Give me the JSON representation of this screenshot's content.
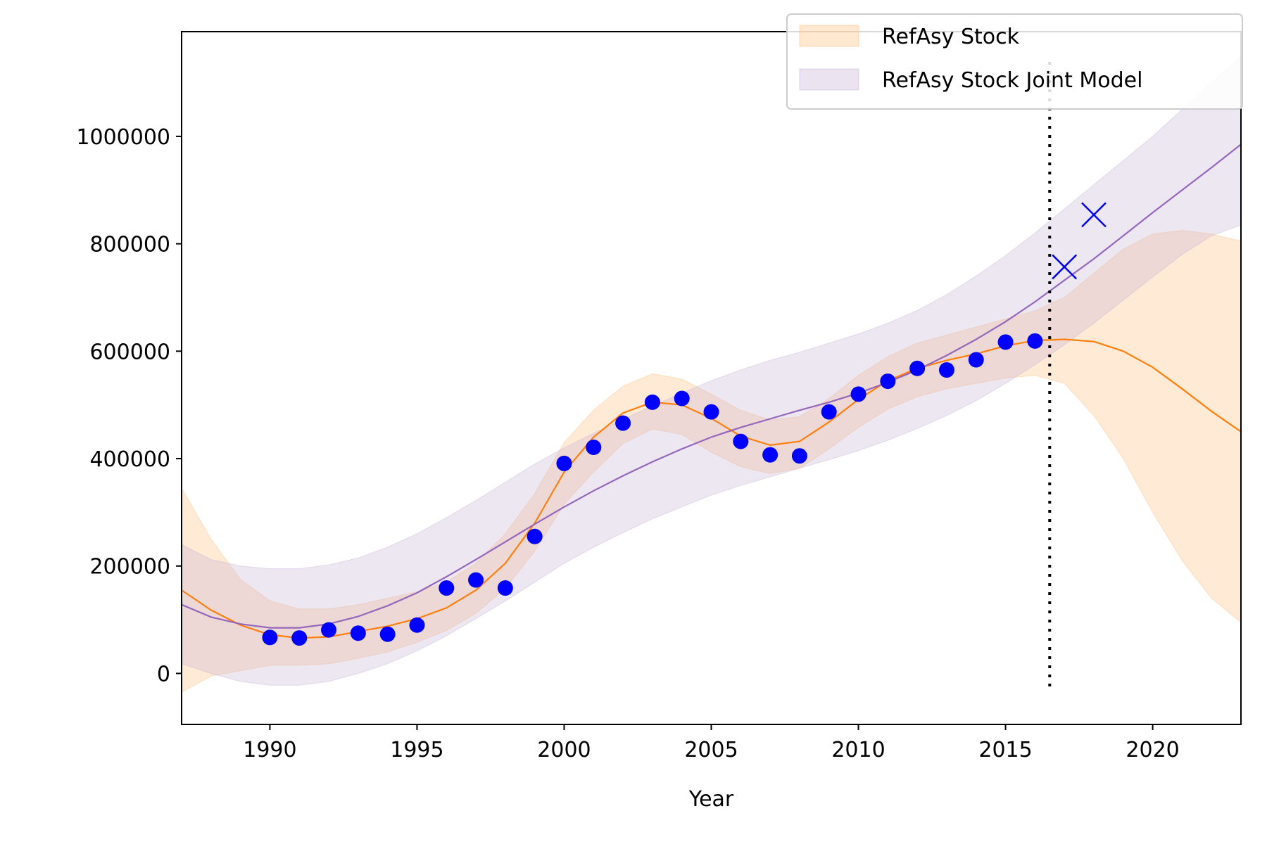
{
  "chart_data": {
    "type": "line",
    "title": "",
    "xlabel": "Year",
    "ylabel": "",
    "xlim": [
      1987,
      2023
    ],
    "ylim": [
      -95000,
      1195000
    ],
    "xticks": [
      1990,
      1995,
      2000,
      2005,
      2010,
      2015,
      2020
    ],
    "yticks": [
      0,
      200000,
      400000,
      600000,
      800000,
      1000000
    ],
    "grid": false,
    "legend_position": "top-right",
    "vline_x": 2016.5,
    "series": [
      {
        "name": "RefAsy Stock",
        "kind": "band_with_line",
        "color": "#ff7f0e",
        "band_color": "#ffbb78",
        "x": [
          1987,
          1988,
          1989,
          1990,
          1991,
          1992,
          1993,
          1994,
          1995,
          1996,
          1997,
          1998,
          1999,
          2000,
          2001,
          2002,
          2003,
          2004,
          2005,
          2006,
          2007,
          2008,
          2009,
          2010,
          2011,
          2012,
          2013,
          2014,
          2015,
          2016,
          2017,
          2018,
          2019,
          2020,
          2021,
          2022,
          2023
        ],
        "y": [
          155000,
          118000,
          90000,
          72000,
          66000,
          68000,
          78000,
          88000,
          102000,
          122000,
          155000,
          205000,
          280000,
          375000,
          440000,
          485000,
          505000,
          500000,
          475000,
          442000,
          425000,
          432000,
          468000,
          510000,
          545000,
          568000,
          583000,
          595000,
          610000,
          620000,
          622000,
          618000,
          600000,
          570000,
          530000,
          488000,
          450000
        ],
        "lower": [
          -35000,
          -5000,
          5000,
          15000,
          15000,
          18000,
          28000,
          40000,
          58000,
          80000,
          112000,
          158000,
          228000,
          315000,
          375000,
          428000,
          455000,
          445000,
          412000,
          385000,
          372000,
          382000,
          418000,
          458000,
          492000,
          515000,
          530000,
          540000,
          550000,
          555000,
          540000,
          480000,
          400000,
          300000,
          210000,
          140000,
          95000
        ],
        "upper": [
          345000,
          250000,
          175000,
          135000,
          120000,
          120000,
          128000,
          140000,
          152000,
          170000,
          205000,
          260000,
          335000,
          430000,
          490000,
          535000,
          558000,
          548000,
          520000,
          490000,
          472000,
          478000,
          512000,
          555000,
          590000,
          615000,
          630000,
          645000,
          660000,
          675000,
          700000,
          745000,
          790000,
          818000,
          825000,
          818000,
          805000
        ]
      },
      {
        "name": "RefAsy Stock Joint Model",
        "kind": "band_with_line",
        "color": "#9467bd",
        "band_color": "#c5b0d5",
        "x": [
          1987,
          1988,
          1989,
          1990,
          1991,
          1992,
          1993,
          1994,
          1995,
          1996,
          1997,
          1998,
          1999,
          2000,
          2001,
          2002,
          2003,
          2004,
          2005,
          2006,
          2007,
          2008,
          2009,
          2010,
          2011,
          2012,
          2013,
          2014,
          2015,
          2016,
          2017,
          2018,
          2019,
          2020,
          2021,
          2022,
          2023
        ],
        "y": [
          128000,
          105000,
          92000,
          85000,
          85000,
          92000,
          106000,
          126000,
          150000,
          180000,
          212000,
          245000,
          278000,
          310000,
          340000,
          368000,
          394000,
          418000,
          440000,
          458000,
          474000,
          490000,
          505000,
          522000,
          542000,
          565000,
          592000,
          622000,
          655000,
          692000,
          732000,
          772000,
          815000,
          858000,
          900000,
          942000,
          985000
        ],
        "lower": [
          18000,
          0,
          -15000,
          -22000,
          -22000,
          -15000,
          0,
          18000,
          42000,
          70000,
          102000,
          135000,
          170000,
          205000,
          235000,
          262000,
          288000,
          310000,
          332000,
          350000,
          366000,
          382000,
          398000,
          415000,
          434000,
          456000,
          480000,
          508000,
          540000,
          575000,
          612000,
          652000,
          695000,
          738000,
          780000,
          815000,
          835000
        ],
        "upper": [
          240000,
          212000,
          200000,
          195000,
          195000,
          202000,
          215000,
          235000,
          260000,
          290000,
          322000,
          356000,
          390000,
          420000,
          447000,
          473000,
          498000,
          522000,
          545000,
          565000,
          583000,
          598000,
          615000,
          632000,
          652000,
          676000,
          705000,
          740000,
          778000,
          820000,
          865000,
          910000,
          955000,
          1000000,
          1050000,
          1100000,
          1150000
        ]
      },
      {
        "name": "",
        "kind": "observed_points",
        "color": "#0000ff",
        "x": [
          1990,
          1991,
          1992,
          1993,
          1994,
          1995,
          1996,
          1997,
          1998,
          1999,
          2000,
          2001,
          2002,
          2003,
          2004,
          2005,
          2006,
          2007,
          2008,
          2009,
          2010,
          2011,
          2012,
          2013,
          2014,
          2015,
          2016
        ],
        "y": [
          67000,
          66000,
          81000,
          75000,
          73000,
          90000,
          159000,
          174000,
          159000,
          255000,
          391000,
          421000,
          466000,
          505000,
          512000,
          487000,
          432000,
          407000,
          405000,
          487000,
          520000,
          544000,
          568000,
          565000,
          584000,
          617000,
          619000
        ]
      },
      {
        "name": "",
        "kind": "held_out_points",
        "color": "#0000ff",
        "x": [
          2017,
          2018
        ],
        "y": [
          757000,
          854000
        ]
      }
    ]
  }
}
